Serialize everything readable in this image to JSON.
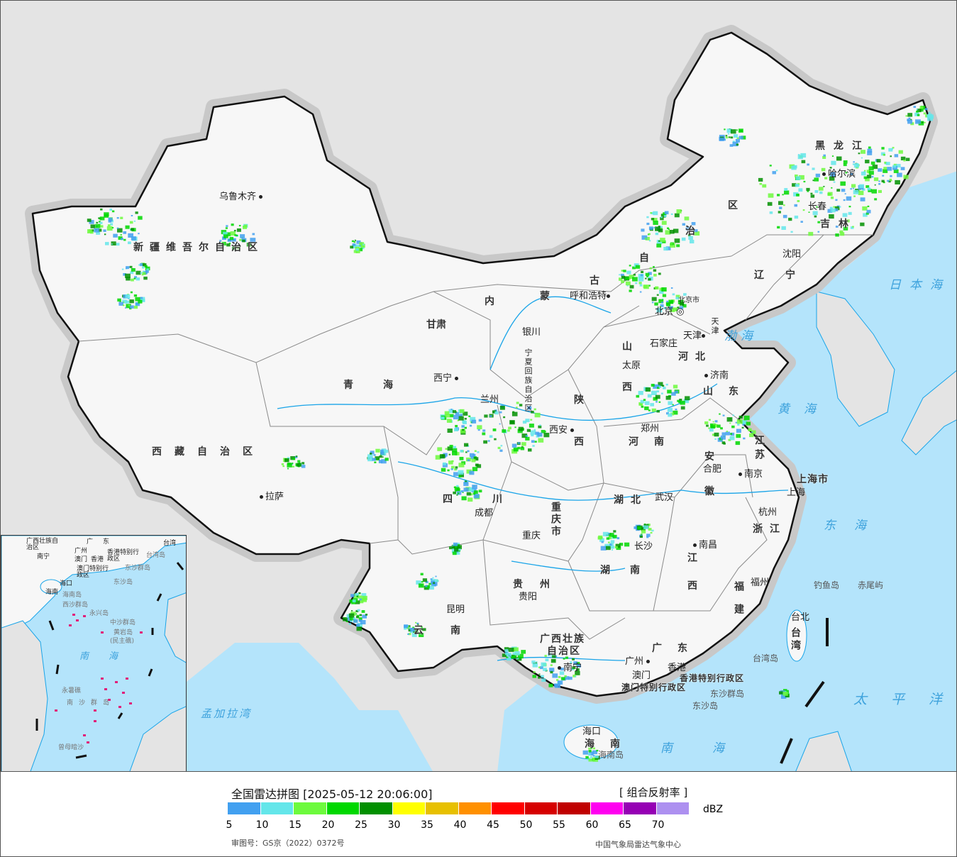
{
  "map": {
    "colors": {
      "sea": "#b4e4fb",
      "land_foreign": "#e4e4e4",
      "china": "#f7f7f7",
      "rivers": "#19a4e8",
      "border": "#111111"
    },
    "cities": [
      "乌鲁木齐",
      "哈尔滨",
      "长春",
      "沈阳",
      "呼和浩特",
      "北京",
      "北京市",
      "天津",
      "石家庄",
      "太原",
      "济南",
      "银川",
      "西宁",
      "兰州",
      "西安",
      "郑州",
      "南京",
      "合肥",
      "上海",
      "武汉",
      "杭州",
      "拉萨",
      "成都",
      "重庆",
      "长沙",
      "南昌",
      "贵阳",
      "福州",
      "昆明",
      "南宁",
      "广州",
      "香港",
      "澳门",
      "海口",
      "台北"
    ],
    "provinces": [
      "黑龙江",
      "吉林",
      "辽宁",
      "内",
      "蒙",
      "古",
      "自",
      "治",
      "区",
      "新疆维吾尔自治区",
      "西藏自治区",
      "青海",
      "甘肃",
      "宁夏回族自治区",
      "陕",
      "西",
      "山",
      "西",
      "河北",
      "山东",
      "河南",
      "江苏",
      "安",
      "徽",
      "湖北",
      "四川",
      "重庆市",
      "湖南",
      "江",
      "西",
      "浙江",
      "福建",
      "贵州",
      "云南",
      "广西壮族",
      "自治区",
      "广东",
      "海南",
      "台湾",
      "上海市",
      "天津",
      "香港特别行政区",
      "澳门特别行政区"
    ],
    "seas": [
      "日本海",
      "渤海",
      "黄海",
      "东海",
      "太平洋",
      "南海",
      "孟加拉湾"
    ],
    "islands": [
      "钓鱼岛",
      "赤尾屿",
      "台湾岛",
      "东沙群岛",
      "东沙岛",
      "海南岛"
    ]
  },
  "inset": {
    "labels": [
      "广西壮族自治区",
      "南宁",
      "广东",
      "广州",
      "澳门",
      "香港",
      "香港特别行政区",
      "澳门特别行政区",
      "台湾",
      "台湾岛",
      "东沙群岛",
      "东沙岛",
      "海口",
      "海南",
      "海南岛",
      "西沙群岛",
      "永兴岛",
      "中沙群岛",
      "黄岩岛",
      "(民主礁)",
      "南海",
      "永暑礁",
      "南沙群岛",
      "曾母暗沙"
    ]
  },
  "legend": {
    "title": "全国雷达拼图 [2025-05-12 20:06:00]",
    "product": "[ 组合反射率 ]",
    "unit": "dBZ",
    "colors": [
      "#42a0f0",
      "#64e6ea",
      "#6dfa3d",
      "#00d800",
      "#019000",
      "#ffff00",
      "#e7c000",
      "#ff9000",
      "#ff0000",
      "#d60000",
      "#c00000",
      "#ff00f0",
      "#9600b4",
      "#ad90f0"
    ],
    "ticks": [
      "5",
      "10",
      "15",
      "20",
      "25",
      "30",
      "35",
      "40",
      "45",
      "50",
      "55",
      "60",
      "65",
      "70"
    ],
    "review_no": "审图号：GS京（2022）0372号",
    "organization": "中国气象局雷达气象中心"
  }
}
